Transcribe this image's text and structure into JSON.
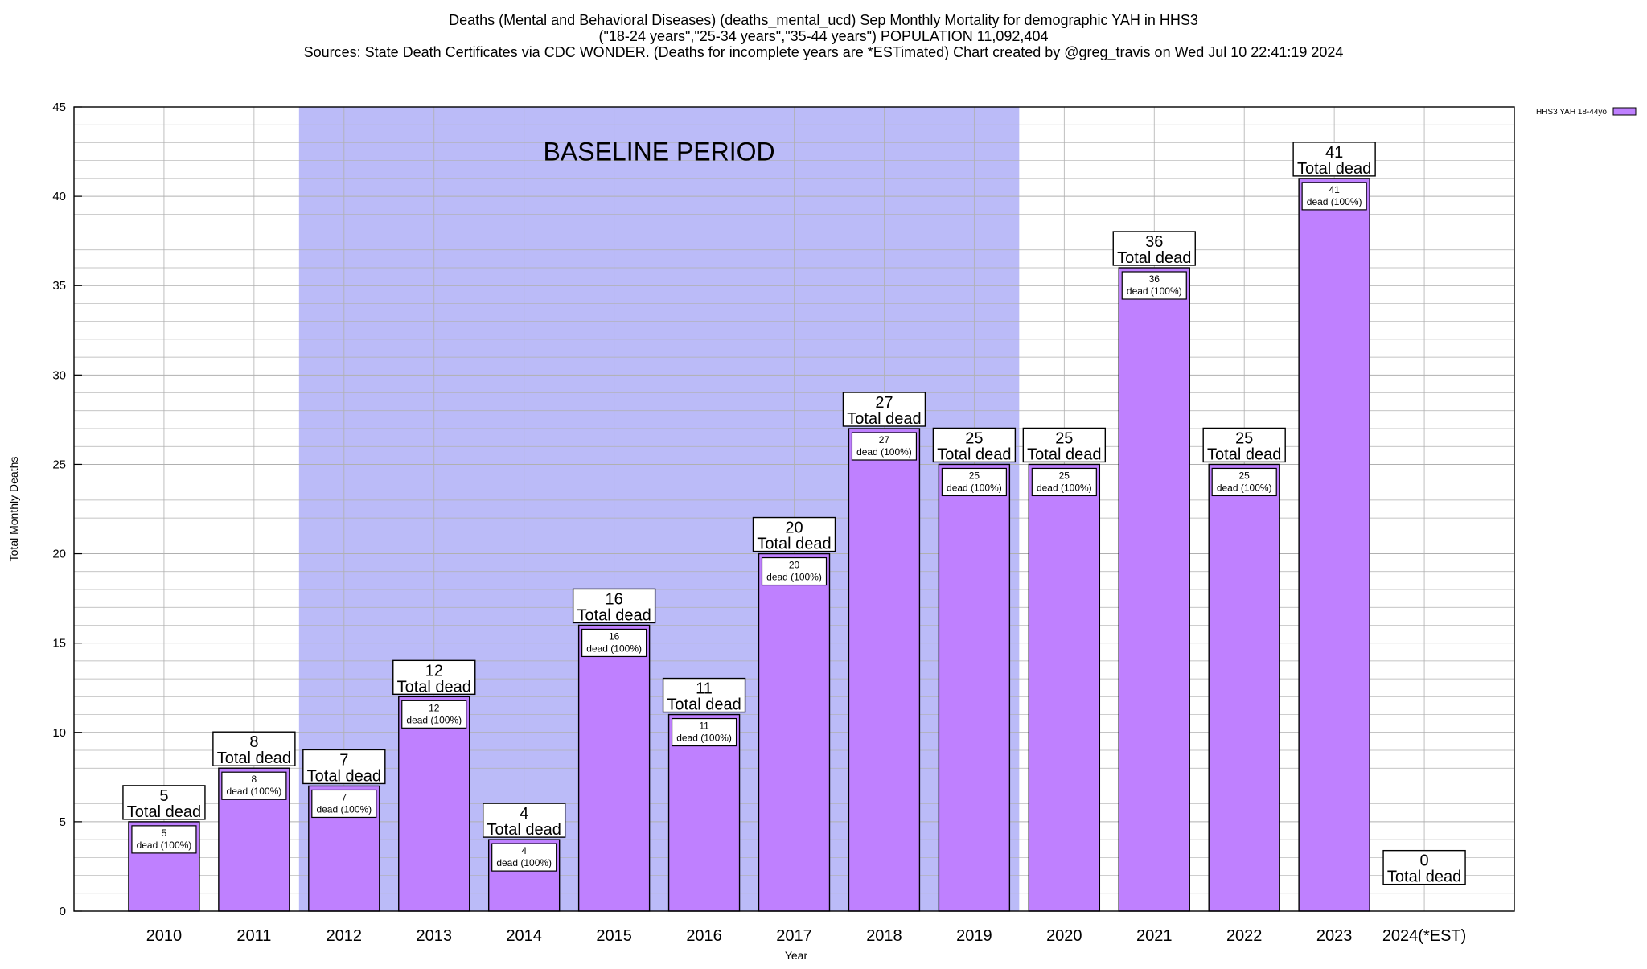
{
  "title_lines": [
    "Deaths (Mental and Behavioral Diseases) (deaths_mental_ucd) Sep Monthly Mortality for demographic YAH in HHS3",
    "(\"18-24 years\",\"25-34 years\",\"35-44 years\") POPULATION 11,092,404",
    "Sources: State Death Certificates via CDC WONDER. (Deaths for incomplete years are *ESTimated)                Chart created by @greg_travis on Wed Jul 10 22:41:19 2024"
  ],
  "colors": {
    "bar_fill": "#bf80ff",
    "baseline_fill": "#bbbbf8",
    "grid": "#b0b0b0"
  },
  "chart_data": {
    "type": "bar",
    "xlabel": "Year",
    "ylabel": "Total Monthly Deaths",
    "ylim": [
      0,
      45
    ],
    "y_major_ticks": [
      0,
      5,
      10,
      15,
      20,
      25,
      30,
      35,
      40,
      45
    ],
    "y_minor_step": 1,
    "grid": true,
    "legend_position": "top-right",
    "categories": [
      "2010",
      "2011",
      "2012",
      "2013",
      "2014",
      "2015",
      "2016",
      "2017",
      "2018",
      "2019",
      "2020",
      "2021",
      "2022",
      "2023",
      "2024(*EST)"
    ],
    "series": [
      {
        "name": "HHS3 YAH 18-44yo",
        "values": [
          5,
          8,
          7,
          12,
          4,
          16,
          11,
          20,
          27,
          25,
          25,
          36,
          25,
          41,
          0
        ]
      }
    ],
    "baseline": {
      "label": "BASELINE PERIOD",
      "from": "2012",
      "to": "2019"
    },
    "total_label_text": "Total dead",
    "bar_label_text": "dead (100%)"
  }
}
